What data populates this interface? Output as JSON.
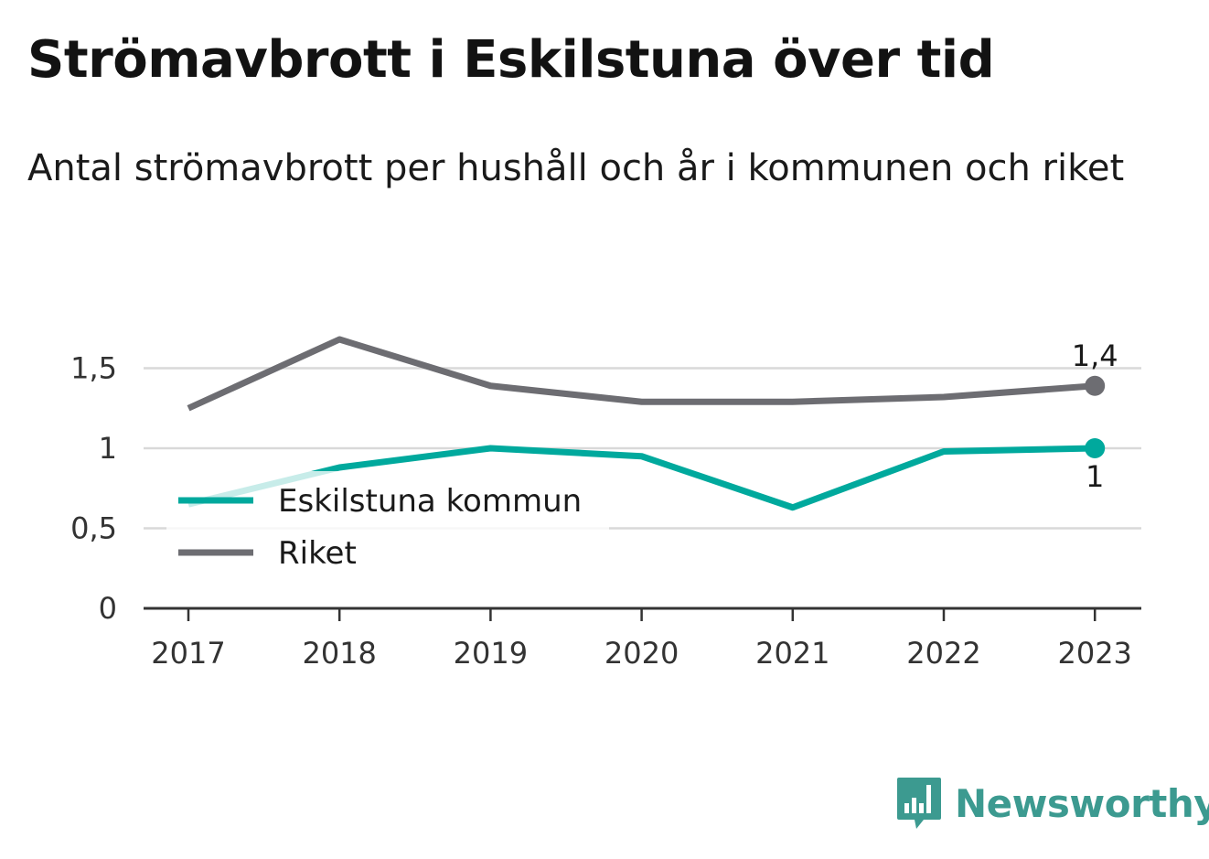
{
  "title": "Strömavbrott i Eskilstuna över tid",
  "subtitle": "Antal strömavbrott per hushåll och år i kommunen och riket",
  "brand": {
    "name": "Newsworthy",
    "logo_icon": "bar-chart-speech-bubble-icon"
  },
  "colors": {
    "kommun": "#00a99d",
    "riket": "#6d6d72",
    "grid": "#d9d9d9",
    "axis": "#333333",
    "brand": "#3c9a90"
  },
  "chart_data": {
    "type": "line",
    "x": [
      "2017",
      "2018",
      "2019",
      "2020",
      "2021",
      "2022",
      "2023"
    ],
    "ylim": [
      0,
      1.8
    ],
    "yticks": [
      {
        "value": 0,
        "label": "0"
      },
      {
        "value": 0.5,
        "label": "0,5"
      },
      {
        "value": 1,
        "label": "1"
      },
      {
        "value": 1.5,
        "label": "1,5"
      }
    ],
    "grid": true,
    "legend_position": "bottom-left",
    "series": [
      {
        "name": "Eskilstuna kommun",
        "color_key": "kommun",
        "values": [
          0.65,
          0.88,
          1.0,
          0.95,
          0.63,
          0.98,
          1.0
        ],
        "end_label": "1"
      },
      {
        "name": "Riket",
        "color_key": "riket",
        "values": [
          1.25,
          1.68,
          1.39,
          1.29,
          1.29,
          1.32,
          1.39
        ],
        "end_label": "1,4"
      }
    ]
  }
}
